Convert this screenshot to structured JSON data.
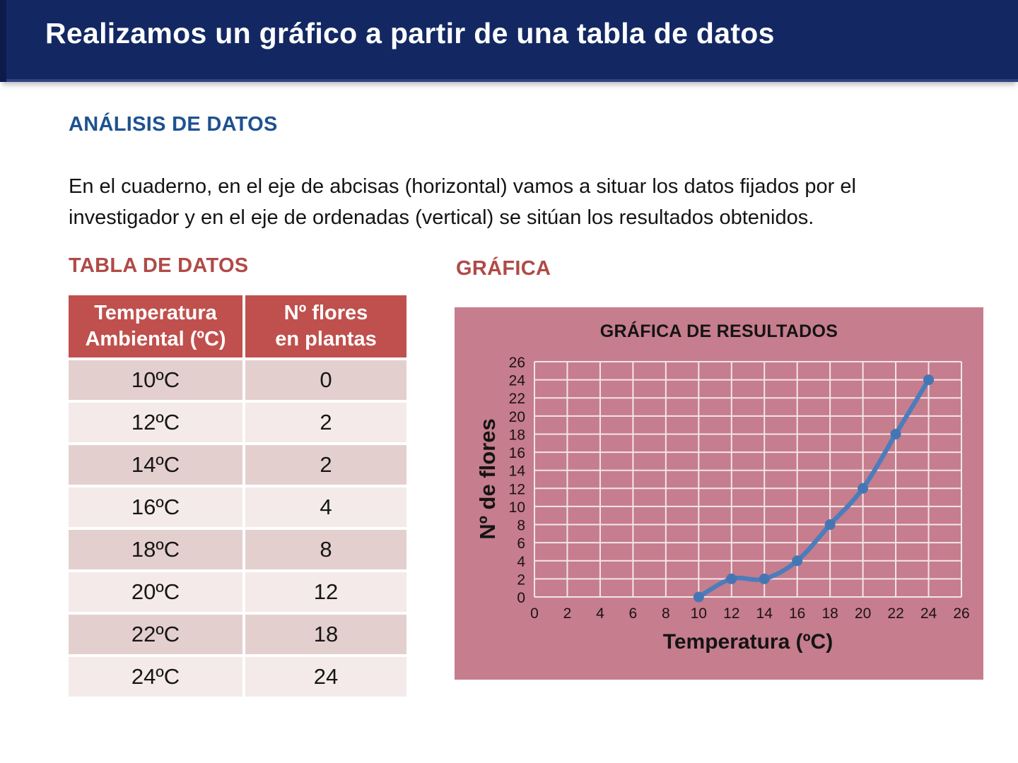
{
  "header": {
    "title": "Realizamos un gráfico a partir de una tabla de datos"
  },
  "analysis": {
    "heading": "ANÁLISIS DE DATOS",
    "paragraph": "En el cuaderno, en el eje de abcisas (horizontal) vamos a situar los datos fijados por el\ninvestigador y en el eje de ordenadas (vertical) se sitúan los resultados obtenidos."
  },
  "table": {
    "heading": "TABLA DE DATOS",
    "columns": [
      "Temperatura\nAmbiental (ºC)",
      "Nº flores\nen plantas"
    ],
    "rows": [
      {
        "temp": "10ºC",
        "flores": "0"
      },
      {
        "temp": "12ºC",
        "flores": "2"
      },
      {
        "temp": "14ºC",
        "flores": "2"
      },
      {
        "temp": "16ºC",
        "flores": "4"
      },
      {
        "temp": "18ºC",
        "flores": "8"
      },
      {
        "temp": "20ºC",
        "flores": "12"
      },
      {
        "temp": "22ºC",
        "flores": "18"
      },
      {
        "temp": "24ºC",
        "flores": "24"
      }
    ]
  },
  "chart_heading": "GRÁFICA",
  "chart_data": {
    "type": "line",
    "title": "GRÁFICA DE RESULTADOS",
    "xlabel": "Temperatura (ºC)",
    "ylabel": "Nº de flores",
    "x": [
      10,
      12,
      14,
      16,
      18,
      20,
      22,
      24
    ],
    "y": [
      0,
      2,
      2,
      4,
      8,
      12,
      18,
      24
    ],
    "xlim": [
      0,
      26
    ],
    "ylim": [
      0,
      26
    ],
    "tick_step": 2,
    "grid": true,
    "legend": false,
    "smooth": true,
    "line_color": "#4c7dbb",
    "marker_color": "#4576b4",
    "grid_color": "#f2e6e9",
    "panel_bg": "#c67d8d"
  },
  "colors": {
    "titlebar_bg": "#132863",
    "heading_blue": "#1e528f",
    "heading_red": "#b04a47",
    "table_header_bg": "#c0504d",
    "row_dark": "#e4cfcf",
    "row_light": "#f3eae9"
  }
}
